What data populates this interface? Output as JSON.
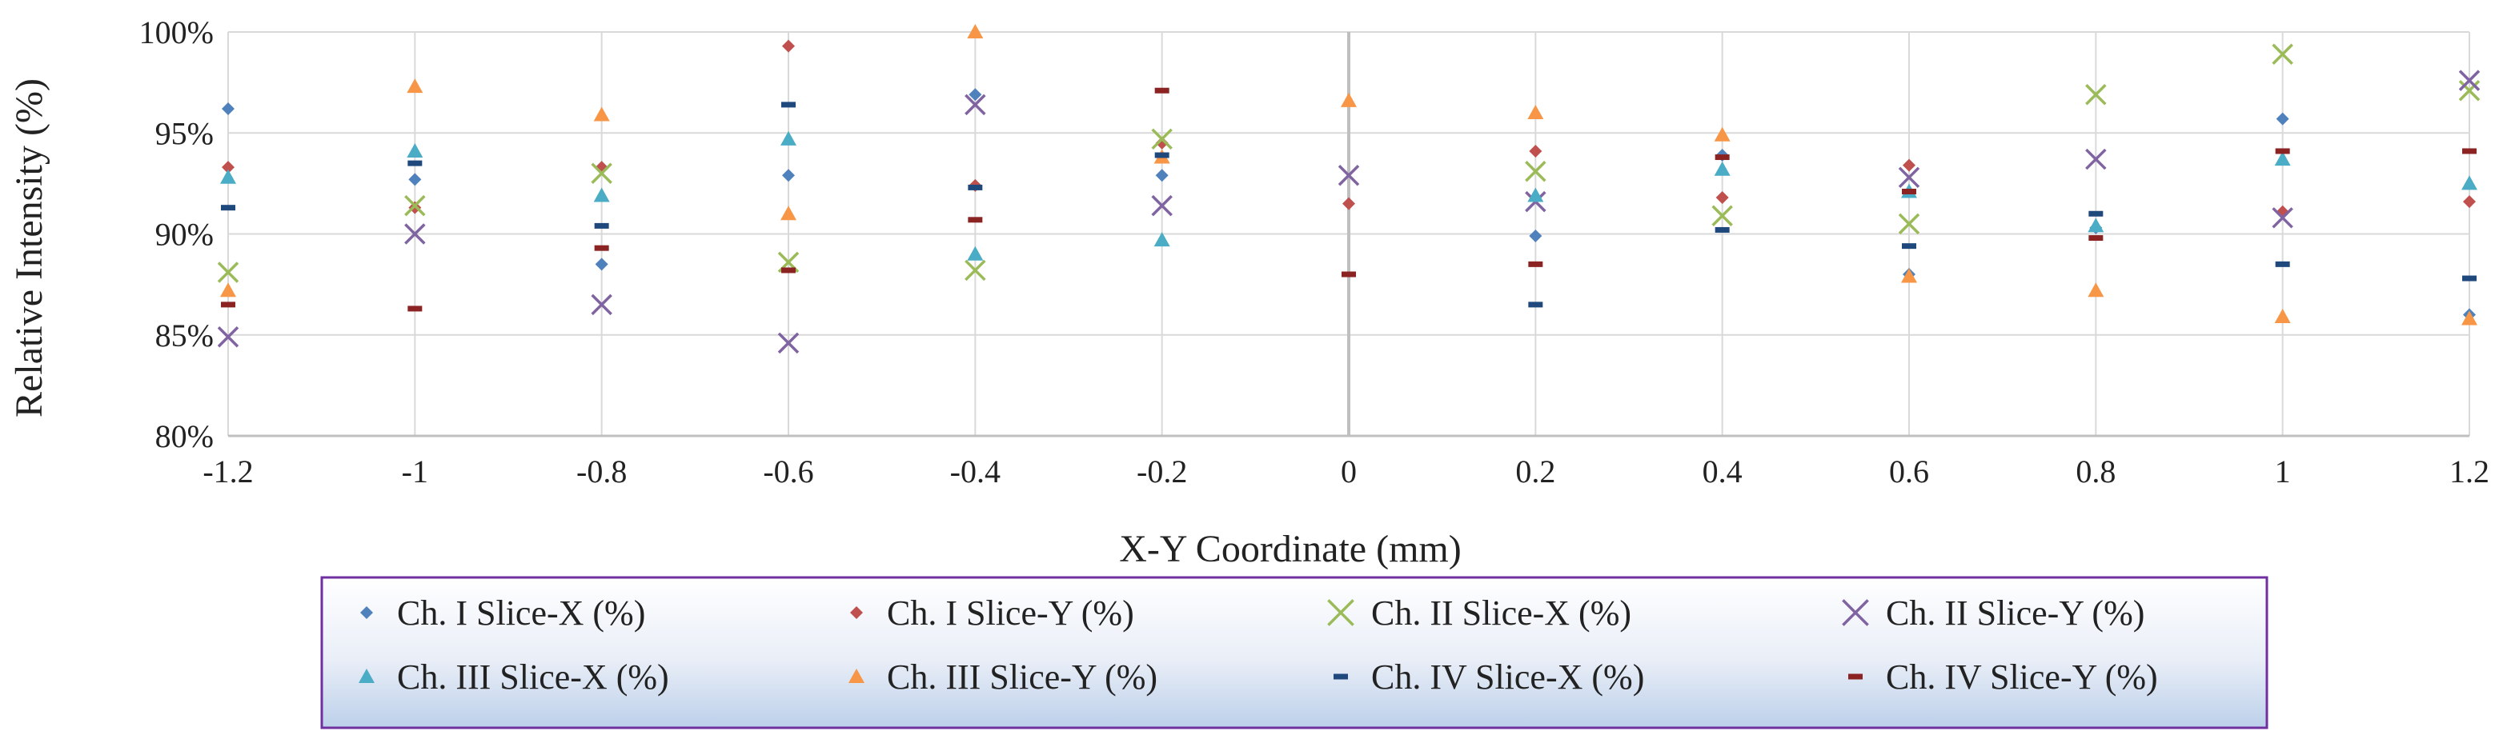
{
  "chart_data": {
    "type": "scatter",
    "title": "",
    "xlabel": "X-Y Coordinate (mm)",
    "ylabel": "Relative Intensity (%)",
    "xlim": [
      -1.2,
      1.2
    ],
    "ylim": [
      80,
      100
    ],
    "x": [
      -1.2,
      -1.0,
      -0.8,
      -0.6,
      -0.4,
      -0.2,
      0.0,
      0.2,
      0.4,
      0.6,
      0.8,
      1.0,
      1.2
    ],
    "x_tick_labels": [
      "-1.2",
      "-1",
      "-0.8",
      "-0.6",
      "-0.4",
      "-0.2",
      "0",
      "0.2",
      "0.4",
      "0.6",
      "0.8",
      "1",
      "1.2"
    ],
    "y_ticks": [
      80,
      85,
      90,
      95,
      100
    ],
    "y_tick_labels": [
      "80%",
      "85%",
      "90%",
      "95%",
      "100%"
    ],
    "grid": true,
    "legend_position": "bottom",
    "series": [
      {
        "name": "Ch. I Slice-X (%)",
        "marker": "diamond",
        "color": "#4F81BD",
        "values": [
          96.2,
          92.7,
          88.5,
          92.9,
          96.9,
          92.9,
          null,
          89.9,
          93.9,
          88.0,
          90.3,
          95.7,
          86.0
        ]
      },
      {
        "name": "Ch. I Slice-Y (%)",
        "marker": "diamond",
        "color": "#C0504D",
        "values": [
          93.3,
          91.3,
          93.3,
          99.3,
          92.4,
          94.5,
          91.5,
          94.1,
          91.8,
          93.4,
          null,
          91.1,
          91.6
        ]
      },
      {
        "name": "Ch. II Slice-X (%)",
        "marker": "x",
        "color": "#9BBB59",
        "values": [
          88.1,
          91.4,
          93.0,
          88.6,
          88.2,
          94.7,
          null,
          93.1,
          90.9,
          90.5,
          96.9,
          98.9,
          97.1
        ]
      },
      {
        "name": "Ch. II Slice-Y (%)",
        "marker": "x",
        "color": "#8064A2",
        "values": [
          84.9,
          90.0,
          86.5,
          84.6,
          96.4,
          91.4,
          92.9,
          91.6,
          null,
          92.8,
          93.7,
          90.8,
          97.6
        ]
      },
      {
        "name": "Ch. III Slice-X (%)",
        "marker": "triangle",
        "color": "#4BACC6",
        "values": [
          92.8,
          94.1,
          91.9,
          94.7,
          89.0,
          89.7,
          null,
          91.9,
          93.2,
          92.1,
          90.4,
          93.7,
          92.5
        ]
      },
      {
        "name": "Ch. III Slice-Y (%)",
        "marker": "triangle",
        "color": "#F79646",
        "values": [
          87.2,
          97.3,
          95.9,
          91.0,
          100.0,
          93.8,
          96.6,
          96.0,
          94.9,
          87.9,
          87.2,
          85.9,
          85.8
        ]
      },
      {
        "name": "Ch. IV Slice-X (%)",
        "marker": "dash",
        "color": "#1F497D",
        "values": [
          91.3,
          93.5,
          90.4,
          96.4,
          92.3,
          93.9,
          null,
          86.5,
          90.2,
          89.4,
          91.0,
          88.5,
          87.8
        ]
      },
      {
        "name": "Ch. IV Slice-Y (%)",
        "marker": "dash",
        "color": "#8B2323",
        "values": [
          86.5,
          86.3,
          89.3,
          88.2,
          90.7,
          97.1,
          88.0,
          88.5,
          93.8,
          92.1,
          89.8,
          94.1,
          94.1
        ]
      }
    ]
  }
}
